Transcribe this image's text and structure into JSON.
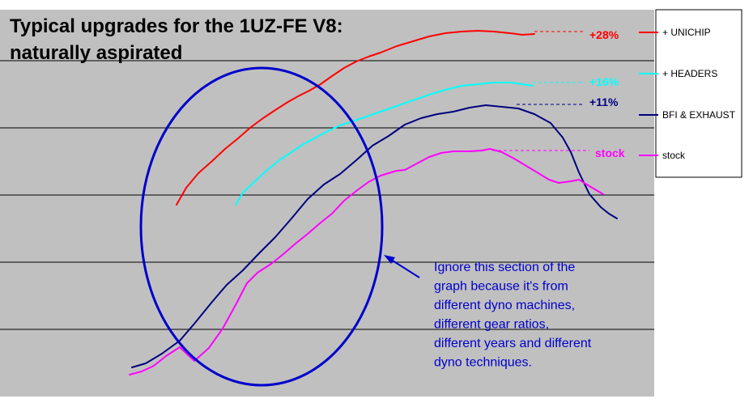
{
  "chart_data": {
    "type": "line",
    "title": "Typical upgrades for the 1UZ-FE V8:",
    "subtitle": "naturally aspirated",
    "grid": true,
    "legend_position": "right",
    "series": [
      {
        "name": "+ UNICHIP",
        "end_label": "+28%",
        "color": "#ff0000",
        "points": [
          [
            218,
            253
          ],
          [
            230,
            232
          ],
          [
            245,
            214
          ],
          [
            262,
            199
          ],
          [
            278,
            184
          ],
          [
            294,
            171
          ],
          [
            310,
            157
          ],
          [
            325,
            146
          ],
          [
            340,
            136
          ],
          [
            354,
            127
          ],
          [
            368,
            119
          ],
          [
            382,
            112
          ],
          [
            396,
            104
          ],
          [
            410,
            94
          ],
          [
            425,
            84
          ],
          [
            440,
            76
          ],
          [
            455,
            70
          ],
          [
            470,
            65
          ],
          [
            490,
            57
          ],
          [
            510,
            51
          ],
          [
            530,
            45
          ],
          [
            550,
            41
          ],
          [
            570,
            39
          ],
          [
            590,
            38
          ],
          [
            610,
            39
          ],
          [
            630,
            41
          ],
          [
            645,
            43
          ],
          [
            660,
            42
          ]
        ]
      },
      {
        "name": "+ HEADERS",
        "end_label": "+16%",
        "color": "#00ffff",
        "points": [
          [
            291,
            253
          ],
          [
            300,
            238
          ],
          [
            315,
            224
          ],
          [
            330,
            210
          ],
          [
            345,
            198
          ],
          [
            360,
            188
          ],
          [
            375,
            178
          ],
          [
            390,
            170
          ],
          [
            405,
            162
          ],
          [
            420,
            155
          ],
          [
            435,
            150
          ],
          [
            450,
            145
          ],
          [
            470,
            138
          ],
          [
            490,
            131
          ],
          [
            510,
            124
          ],
          [
            530,
            117
          ],
          [
            550,
            111
          ],
          [
            570,
            106
          ],
          [
            590,
            104
          ],
          [
            610,
            102
          ],
          [
            630,
            102
          ],
          [
            645,
            104
          ],
          [
            658,
            106
          ]
        ]
      },
      {
        "name": "BFI & EXHAUST",
        "end_label": "+11%",
        "color": "#000080",
        "points": [
          [
            163,
            454
          ],
          [
            180,
            449
          ],
          [
            200,
            437
          ],
          [
            222,
            421
          ],
          [
            240,
            400
          ],
          [
            262,
            373
          ],
          [
            280,
            352
          ],
          [
            300,
            334
          ],
          [
            320,
            313
          ],
          [
            340,
            293
          ],
          [
            360,
            270
          ],
          [
            380,
            246
          ],
          [
            400,
            228
          ],
          [
            420,
            215
          ],
          [
            440,
            198
          ],
          [
            460,
            180
          ],
          [
            480,
            168
          ],
          [
            500,
            154
          ],
          [
            520,
            146
          ],
          [
            540,
            141
          ],
          [
            560,
            138
          ],
          [
            580,
            133
          ],
          [
            600,
            130
          ],
          [
            620,
            132
          ],
          [
            640,
            134
          ],
          [
            660,
            141
          ],
          [
            680,
            152
          ],
          [
            695,
            170
          ],
          [
            705,
            188
          ],
          [
            715,
            213
          ],
          [
            728,
            240
          ],
          [
            742,
            256
          ],
          [
            752,
            264
          ],
          [
            762,
            270
          ]
        ]
      },
      {
        "name": "stock",
        "end_label": "stock",
        "color": "#ff00ff",
        "points": [
          [
            160,
            463
          ],
          [
            175,
            459
          ],
          [
            190,
            452
          ],
          [
            205,
            440
          ],
          [
            222,
            429
          ],
          [
            240,
            446
          ],
          [
            258,
            430
          ],
          [
            275,
            406
          ],
          [
            292,
            375
          ],
          [
            305,
            350
          ],
          [
            318,
            337
          ],
          [
            335,
            326
          ],
          [
            350,
            314
          ],
          [
            365,
            301
          ],
          [
            380,
            289
          ],
          [
            395,
            276
          ],
          [
            410,
            264
          ],
          [
            425,
            248
          ],
          [
            440,
            236
          ],
          [
            455,
            225
          ],
          [
            470,
            217
          ],
          [
            490,
            211
          ],
          [
            500,
            210
          ],
          [
            515,
            202
          ],
          [
            530,
            194
          ],
          [
            545,
            189
          ],
          [
            560,
            187
          ],
          [
            580,
            187
          ],
          [
            595,
            186
          ],
          [
            605,
            184
          ],
          [
            620,
            188
          ],
          [
            635,
            196
          ],
          [
            650,
            205
          ],
          [
            665,
            214
          ],
          [
            678,
            222
          ],
          [
            690,
            226
          ],
          [
            705,
            224
          ],
          [
            715,
            222
          ],
          [
            728,
            230
          ],
          [
            745,
            240
          ]
        ]
      }
    ],
    "annotation": {
      "lines": [
        "Ignore this section of the",
        "graph because it's from",
        "different dyno machines,",
        "different gear ratios,",
        "different years and different",
        "dyno techniques."
      ],
      "color": "#0000cc"
    }
  },
  "colors": {
    "plot_background": "#c0c0c0",
    "gridline": "#000000",
    "title_text": "#000000",
    "highlight_ellipse": "#0000cc"
  }
}
